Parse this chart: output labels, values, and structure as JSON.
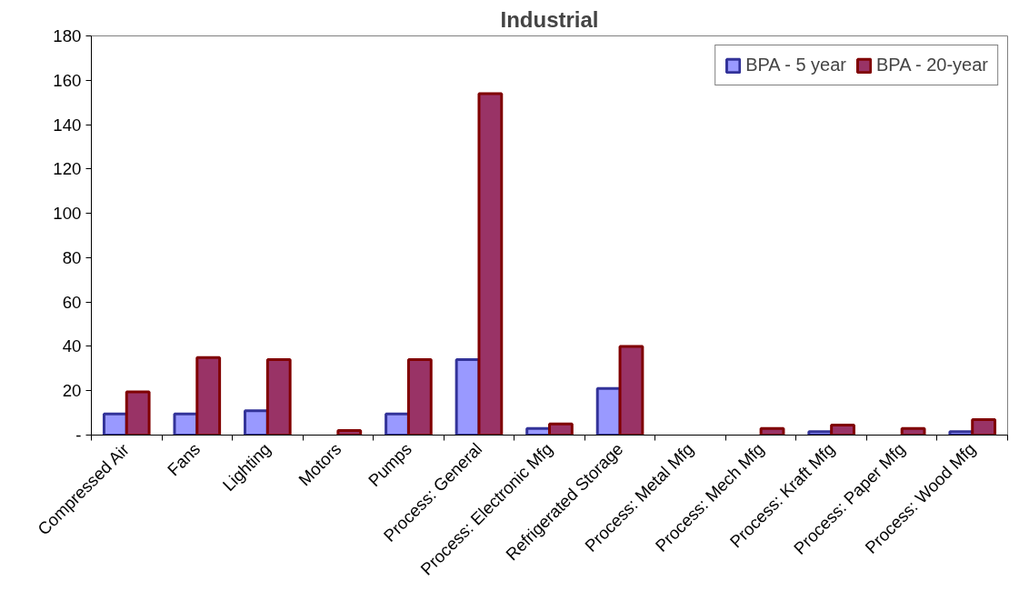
{
  "chart_data": {
    "type": "bar",
    "title": "Industrial",
    "categories": [
      "Compressed Air",
      "Fans",
      "Lighting",
      "Motors",
      "Pumps",
      "Process: General",
      "Process: Electronic Mfg",
      "Refrigerated Storage",
      "Process: Metal Mfg",
      "Process: Mech Mfg",
      "Process: Kraft Mfg",
      "Process: Paper Mfg",
      "Process: Wood Mfg"
    ],
    "series": [
      {
        "name": "BPA - 5 year",
        "color": "#9999ff",
        "values": [
          9.5,
          9.5,
          11,
          0,
          9.5,
          34,
          3,
          21,
          0,
          0,
          1.5,
          0,
          1.5
        ]
      },
      {
        "name": "BPA - 20-year",
        "color": "#993366",
        "values": [
          19.5,
          35,
          34,
          2,
          34,
          154,
          5,
          40,
          0,
          3,
          4.5,
          3,
          7
        ]
      }
    ],
    "ylim": [
      0,
      180
    ],
    "yticks": [
      {
        "value": 0,
        "label": "-"
      },
      20,
      40,
      60,
      80,
      100,
      120,
      140,
      160,
      180
    ],
    "grid": false,
    "legend": "top right"
  }
}
